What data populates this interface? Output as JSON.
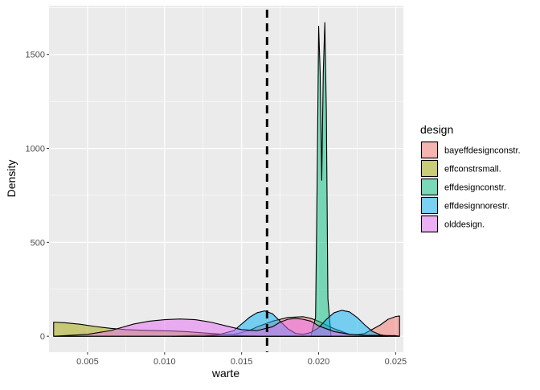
{
  "chart_data": {
    "type": "area",
    "title": "",
    "xlabel": "warte",
    "ylabel": "Density",
    "xlim": [
      0.0025,
      0.0255
    ],
    "ylim": [
      -85,
      1760
    ],
    "x_ticks": [
      0.005,
      0.01,
      0.015,
      0.02,
      0.025
    ],
    "x_tick_labels": [
      "0.005",
      "0.010",
      "0.015",
      "0.020",
      "0.025"
    ],
    "y_ticks": [
      0,
      500,
      1000,
      1500
    ],
    "y_tick_labels": [
      "0",
      "500",
      "1000",
      "1500"
    ],
    "grid": true,
    "legend": {
      "title": "design",
      "position": "right"
    },
    "reference_line": {
      "x": 0.01665,
      "style": "dashed"
    },
    "series": [
      {
        "name": "bayeffdesignconstr.",
        "color": "#F8766D",
        "x": [
          0.0105,
          0.0115,
          0.013,
          0.0145,
          0.0155,
          0.016,
          0.017,
          0.018,
          0.0185,
          0.019,
          0.0195,
          0.02,
          0.021,
          0.022,
          0.0225,
          0.023,
          0.024,
          0.0245,
          0.025,
          0.02525
        ],
        "y": [
          0,
          4,
          8,
          10,
          30,
          50,
          80,
          100,
          102,
          104,
          95,
          80,
          40,
          10,
          8,
          15,
          60,
          90,
          105,
          108
        ]
      },
      {
        "name": "effconstrsmall.",
        "color": "#A3A500",
        "x": [
          0.0028,
          0.0035,
          0.0045,
          0.0055,
          0.0065,
          0.0075,
          0.0085,
          0.0095,
          0.0105,
          0.0115,
          0.0125,
          0.0135,
          0.0145,
          0.0155,
          0.0165
        ],
        "y": [
          75,
          72,
          64,
          52,
          42,
          35,
          32,
          30,
          28,
          24,
          18,
          12,
          6,
          2,
          0
        ]
      },
      {
        "name": "effdesignconstr.",
        "color": "#00BF7D",
        "x": [
          0.0195,
          0.0198,
          0.0199,
          0.02,
          0.0201,
          0.0202,
          0.0203,
          0.0204,
          0.0205,
          0.0206,
          0.0208
        ],
        "y": [
          0,
          100,
          800,
          1650,
          1400,
          830,
          1400,
          1670,
          1200,
          200,
          0
        ]
      },
      {
        "name": "effdesignnorestr.",
        "color": "#00B0F6",
        "x": [
          0.0125,
          0.0135,
          0.0145,
          0.0155,
          0.016,
          0.0165,
          0.017,
          0.0175,
          0.018,
          0.0185,
          0.019,
          0.0195,
          0.02,
          0.0205,
          0.021,
          0.0215,
          0.022,
          0.0225,
          0.023,
          0.0235,
          0.024,
          0.0245
        ],
        "y": [
          0,
          8,
          30,
          100,
          125,
          135,
          120,
          80,
          40,
          15,
          10,
          20,
          45,
          90,
          125,
          138,
          130,
          100,
          60,
          25,
          8,
          0
        ]
      },
      {
        "name": "olddesign.",
        "color": "#E76BF3",
        "x": [
          0.0028,
          0.005,
          0.0065,
          0.008,
          0.009,
          0.01,
          0.011,
          0.012,
          0.013,
          0.014,
          0.015,
          0.016,
          0.017,
          0.0175,
          0.018,
          0.0185,
          0.019,
          0.0195,
          0.02,
          0.021,
          0.022,
          0.023,
          0.024,
          0.025,
          0.02525
        ],
        "y": [
          0,
          10,
          30,
          65,
          80,
          88,
          92,
          88,
          75,
          55,
          35,
          30,
          50,
          75,
          90,
          95,
          90,
          80,
          55,
          25,
          10,
          5,
          4,
          3,
          0
        ]
      }
    ]
  }
}
